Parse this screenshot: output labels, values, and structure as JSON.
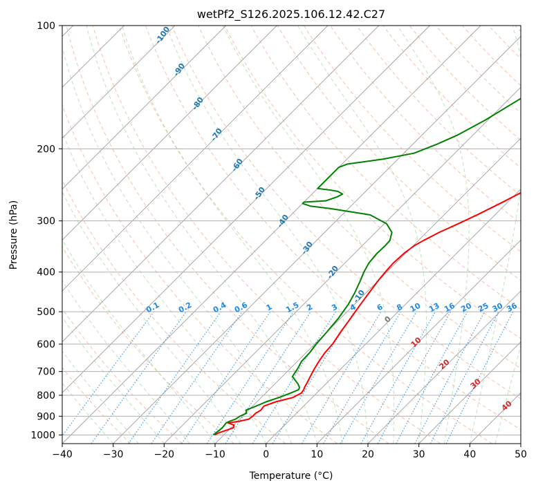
{
  "chart_data": {
    "type": "line",
    "title": "wetPf2_S126.2025.106.12.42.C27",
    "xlabel": "Temperature (°C)",
    "ylabel": "Pressure (hPa)",
    "xlim": [
      -40,
      50
    ],
    "ylim": [
      1050,
      100
    ],
    "y_scale": "log",
    "grid": true,
    "x_ticks": [
      -40,
      -30,
      -20,
      -10,
      0,
      10,
      20,
      30,
      40,
      50
    ],
    "y_ticks": [
      1000,
      900,
      800,
      700,
      600,
      500,
      400,
      300,
      200,
      100
    ],
    "dry_adiabat_labels": [
      "-100",
      "-90",
      "-80",
      "-70",
      "-60",
      "-50",
      "-40",
      "-30",
      "-20",
      "-10"
    ],
    "mixing_ratio_labels": [
      "0.1",
      "0.2",
      "0.4",
      "0.6",
      "1",
      "1.5",
      "2",
      "3",
      "4",
      "6",
      "8",
      "10",
      "13",
      "16",
      "20",
      "25",
      "30",
      "36"
    ],
    "moist_adiabat_labels": [
      "0",
      "10",
      "20",
      "30",
      "40"
    ],
    "series": [
      {
        "color": "#ff0000",
        "p": [
          1000,
          990,
          975,
          960,
          945,
          935,
          925,
          915,
          900,
          885,
          870,
          850,
          830,
          810,
          790,
          775,
          765,
          750,
          720,
          690,
          660,
          630,
          600,
          560,
          520,
          480,
          450,
          420,
          400,
          380,
          360,
          345,
          335,
          320,
          305,
          290,
          270,
          250,
          230,
          210,
          190,
          170,
          150,
          130,
          115,
          100
        ],
        "t": [
          -11.8,
          -11.5,
          -10.5,
          -9.5,
          -10,
          -11.5,
          -9.5,
          -8.2,
          -8,
          -8,
          -7.6,
          -7.8,
          -6.3,
          -3.8,
          -3,
          -3.2,
          -3.5,
          -3.8,
          -4.5,
          -5.2,
          -5.8,
          -6.3,
          -6.5,
          -7.3,
          -8,
          -8.8,
          -9.4,
          -10,
          -10.3,
          -10.5,
          -10.3,
          -9.8,
          -9,
          -7.5,
          -5.5,
          -3.5,
          -1,
          1.5,
          4.5,
          7.5,
          10.5,
          13.5,
          17,
          21.5,
          25.5,
          30.5
        ]
      },
      {
        "color": "#008000",
        "p": [
          1000,
          990,
          975,
          960,
          945,
          935,
          925,
          915,
          900,
          885,
          870,
          850,
          830,
          810,
          790,
          775,
          765,
          750,
          720,
          690,
          660,
          630,
          600,
          560,
          520,
          480,
          450,
          420,
          400,
          380,
          360,
          345,
          335,
          320,
          305,
          290,
          280,
          276,
          272,
          270,
          268,
          262,
          258,
          254,
          252,
          250,
          240,
          230,
          222,
          218,
          212,
          205,
          195,
          185,
          170,
          150,
          130,
          115,
          100
        ],
        "t": [
          -12,
          -12,
          -11.8,
          -11.7,
          -11.8,
          -11.9,
          -11.5,
          -10.8,
          -10.5,
          -9.8,
          -10.5,
          -9.3,
          -8.2,
          -6.5,
          -5.1,
          -4.2,
          -4.5,
          -5.5,
          -8,
          -8.5,
          -9.2,
          -9.3,
          -9.7,
          -10,
          -10.4,
          -11.2,
          -12.2,
          -13.5,
          -14.5,
          -15.3,
          -15.6,
          -15.5,
          -15.6,
          -16.8,
          -19.5,
          -24.5,
          -33.5,
          -38,
          -40,
          -40,
          -36,
          -34.5,
          -34,
          -35.5,
          -37.5,
          -40,
          -40,
          -40,
          -40,
          -39,
          -33,
          -28,
          -25.3,
          -23,
          -20.5,
          -17.7,
          -14.5,
          -11,
          -7
        ]
      }
    ]
  }
}
